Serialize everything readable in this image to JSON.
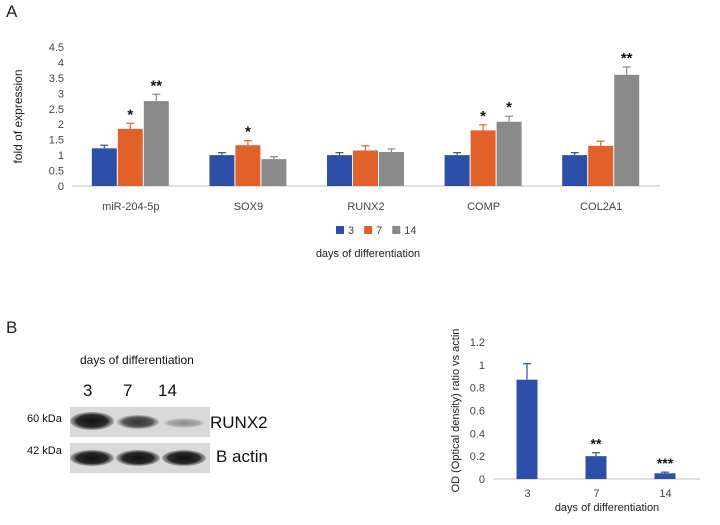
{
  "panels": {
    "a_label": "A",
    "b_label": "B"
  },
  "chart_data": [
    {
      "type": "bar",
      "ylabel": "fold of expression",
      "xlabel": "days of differentiation",
      "ylim": [
        0,
        4.5
      ],
      "yticks": [
        "0",
        "0.5",
        "1",
        "1.5",
        "2",
        "2.5",
        "3",
        "3.5",
        "4",
        "4.5"
      ],
      "categories": [
        "miR-204-5p",
        "SOX9",
        "RUNX2",
        "COMP",
        "COL2A1"
      ],
      "series": [
        {
          "name": "3",
          "color": "#2e4fa8",
          "values": [
            1.22,
            1.0,
            1.0,
            1.0,
            1.0
          ],
          "errors": [
            0.1,
            0.08,
            0.08,
            0.08,
            0.08
          ],
          "annotations": [
            "",
            "",
            "",
            "",
            ""
          ]
        },
        {
          "name": "7",
          "color": "#e2612a",
          "values": [
            1.85,
            1.32,
            1.15,
            1.8,
            1.3
          ],
          "errors": [
            0.18,
            0.15,
            0.15,
            0.18,
            0.15
          ],
          "annotations": [
            "*",
            "*",
            "",
            "*",
            ""
          ]
        },
        {
          "name": "14",
          "color": "#8a8a8a",
          "values": [
            2.75,
            0.87,
            1.1,
            2.08,
            3.6
          ],
          "errors": [
            0.22,
            0.08,
            0.1,
            0.18,
            0.25
          ],
          "annotations": [
            "**",
            "",
            "",
            "*",
            "**"
          ]
        }
      ],
      "legend_position": "bottom"
    },
    {
      "type": "bar",
      "ylabel": "OD (Optical density) ratio vs actin",
      "xlabel": "days of differentiation",
      "ylim": [
        0,
        1.2
      ],
      "yticks": [
        "0",
        "0.2",
        "0.4",
        "0.6",
        "0.8",
        "1",
        "1.2"
      ],
      "categories": [
        "3",
        "7",
        "14"
      ],
      "series": [
        {
          "color": "#2e4fa8",
          "values": [
            0.87,
            0.2,
            0.05
          ],
          "errors": [
            0.14,
            0.03,
            0.01
          ],
          "annotations": [
            "",
            "**",
            "***"
          ]
        }
      ]
    }
  ],
  "blot": {
    "header": "days of differentiation",
    "lanes": [
      "3",
      "7",
      "14"
    ],
    "bands": [
      {
        "kda": "60 kDa",
        "protein": "RUNX2"
      },
      {
        "kda": "42 kDa",
        "protein": "B actin"
      }
    ]
  }
}
